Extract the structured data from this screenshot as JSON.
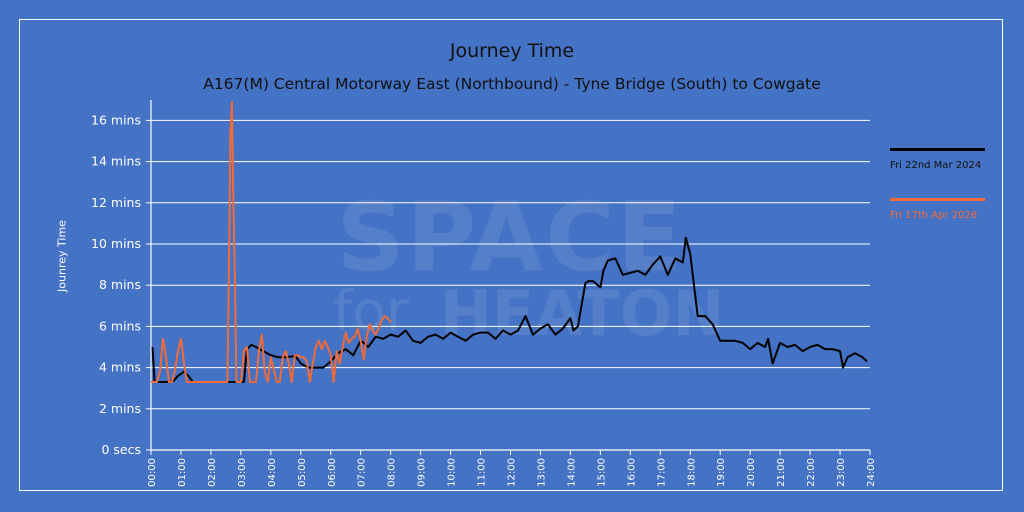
{
  "chart_data": {
    "type": "line",
    "title": "Journey Time",
    "subtitle": "A167(M) Central Motorway East (Northbound) - Tyne Bridge (South) to Cowgate",
    "xlabel": "",
    "ylabel": "Jounrey Time",
    "y_unit": "mins",
    "ylim": [
      0,
      17
    ],
    "y_ticks": [
      {
        "value": 0,
        "label": "0 secs"
      },
      {
        "value": 2,
        "label": "2 mins"
      },
      {
        "value": 4,
        "label": "4 mins"
      },
      {
        "value": 6,
        "label": "6 mins"
      },
      {
        "value": 8,
        "label": "8 mins"
      },
      {
        "value": 10,
        "label": "10 mins"
      },
      {
        "value": 12,
        "label": "12 mins"
      },
      {
        "value": 14,
        "label": "14 mins"
      },
      {
        "value": 16,
        "label": "16 mins"
      }
    ],
    "x_ticks": [
      "00:00",
      "01:00",
      "02:00",
      "03:00",
      "04:00",
      "05:00",
      "06:00",
      "07:00",
      "08:00",
      "09:00",
      "10:00",
      "11:00",
      "12:00",
      "13:00",
      "14:00",
      "15:00",
      "16:00",
      "17:00",
      "18:00",
      "19:00",
      "20:00",
      "21:00",
      "22:00",
      "23:00",
      "24:00"
    ],
    "xlim_hours": [
      0,
      24
    ],
    "grid": "horizontal",
    "legend_position": "right",
    "series": [
      {
        "name": "Fri 22nd Mar 2024",
        "color": "#000000",
        "x_hours": [
          0.05,
          0.12,
          0.2,
          0.35,
          0.5,
          0.75,
          0.9,
          1.0,
          1.1,
          1.25,
          1.4,
          1.55,
          1.7,
          2.0,
          2.3,
          2.6,
          2.9,
          3.1,
          3.2,
          3.35,
          3.5,
          3.75,
          4.0,
          4.25,
          4.5,
          4.75,
          4.85,
          5.0,
          5.25,
          5.5,
          5.75,
          6.0,
          6.25,
          6.5,
          6.75,
          7.0,
          7.1,
          7.25,
          7.5,
          7.75,
          8.0,
          8.25,
          8.5,
          8.75,
          9.0,
          9.25,
          9.5,
          9.75,
          10.0,
          10.25,
          10.5,
          10.75,
          11.0,
          11.25,
          11.5,
          11.75,
          12.0,
          12.25,
          12.5,
          12.75,
          13.0,
          13.25,
          13.5,
          13.75,
          14.0,
          14.1,
          14.25,
          14.5,
          14.6,
          14.75,
          15.0,
          15.1,
          15.25,
          15.5,
          15.75,
          16.0,
          16.25,
          16.5,
          16.75,
          17.0,
          17.25,
          17.5,
          17.75,
          17.85,
          18.0,
          18.25,
          18.5,
          18.75,
          19.0,
          19.25,
          19.5,
          19.75,
          20.0,
          20.25,
          20.5,
          20.6,
          20.75,
          21.0,
          21.25,
          21.5,
          21.75,
          22.0,
          22.25,
          22.5,
          22.75,
          23.0,
          23.1,
          23.25,
          23.5,
          23.75,
          23.9
        ],
        "values": [
          5.0,
          3.3,
          3.3,
          3.3,
          3.3,
          3.35,
          3.6,
          3.7,
          3.8,
          3.6,
          3.3,
          3.3,
          3.3,
          3.3,
          3.3,
          3.3,
          3.3,
          3.3,
          4.9,
          5.1,
          5.0,
          4.8,
          4.6,
          4.5,
          4.5,
          4.55,
          4.5,
          4.2,
          4.0,
          4.0,
          4.0,
          4.3,
          4.7,
          4.9,
          4.6,
          5.3,
          5.2,
          5.0,
          5.5,
          5.4,
          5.6,
          5.5,
          5.8,
          5.3,
          5.2,
          5.5,
          5.6,
          5.4,
          5.7,
          5.5,
          5.3,
          5.6,
          5.7,
          5.7,
          5.4,
          5.8,
          5.6,
          5.8,
          6.5,
          5.6,
          5.9,
          6.1,
          5.6,
          5.9,
          6.4,
          5.8,
          6.0,
          8.1,
          8.2,
          8.2,
          7.9,
          8.7,
          9.2,
          9.3,
          8.5,
          8.6,
          8.7,
          8.5,
          9.0,
          9.4,
          8.5,
          9.3,
          9.1,
          10.3,
          9.5,
          6.5,
          6.5,
          6.1,
          5.3,
          5.3,
          5.3,
          5.2,
          4.9,
          5.2,
          5.0,
          5.4,
          4.2,
          5.2,
          5.0,
          5.1,
          4.8,
          5.0,
          5.1,
          4.9,
          4.9,
          4.8,
          4.0,
          4.5,
          4.7,
          4.5,
          4.3
        ]
      },
      {
        "name": "Fri 17th Apr 2026",
        "color": "#f26b38",
        "x_hours": [
          0.0,
          0.2,
          0.3,
          0.4,
          0.5,
          0.6,
          0.7,
          0.8,
          0.9,
          1.0,
          1.1,
          1.2,
          1.3,
          1.5,
          1.6,
          2.0,
          2.4,
          2.55,
          2.6,
          2.65,
          2.7,
          2.75,
          2.8,
          2.85,
          2.95,
          3.0,
          3.1,
          3.2,
          3.3,
          3.4,
          3.5,
          3.6,
          3.7,
          3.8,
          3.9,
          4.0,
          4.1,
          4.2,
          4.3,
          4.4,
          4.5,
          4.6,
          4.7,
          4.8,
          4.9,
          5.0,
          5.1,
          5.2,
          5.3,
          5.4,
          5.5,
          5.6,
          5.7,
          5.8,
          5.9,
          6.0,
          6.1,
          6.2,
          6.3,
          6.4,
          6.5,
          6.6,
          6.7,
          6.8,
          6.9,
          7.0,
          7.1,
          7.2,
          7.3,
          7.4,
          7.5,
          7.6,
          7.7,
          7.8,
          7.9,
          8.0
        ],
        "values": [
          3.3,
          3.3,
          3.8,
          5.4,
          4.5,
          3.3,
          3.3,
          3.9,
          4.8,
          5.4,
          4.2,
          3.3,
          3.3,
          3.3,
          3.3,
          3.3,
          3.3,
          3.3,
          8.5,
          15.3,
          16.9,
          12.0,
          8.4,
          3.3,
          3.3,
          3.3,
          4.8,
          5.0,
          3.3,
          3.3,
          3.3,
          4.8,
          5.6,
          3.8,
          3.3,
          4.5,
          3.9,
          3.3,
          3.3,
          4.5,
          4.8,
          4.2,
          3.3,
          4.6,
          4.6,
          4.5,
          4.5,
          4.3,
          3.3,
          4.2,
          5.0,
          5.3,
          4.9,
          5.3,
          5.0,
          4.6,
          3.3,
          4.8,
          4.2,
          5.0,
          5.7,
          5.2,
          5.4,
          5.5,
          5.9,
          5.3,
          4.4,
          5.5,
          6.1,
          5.8,
          5.6,
          5.9,
          6.3,
          6.5,
          6.4,
          6.2
        ]
      }
    ]
  },
  "watermark": {
    "line1": "SPACE",
    "line2_a": "for",
    "line2_b": "HEATON"
  }
}
